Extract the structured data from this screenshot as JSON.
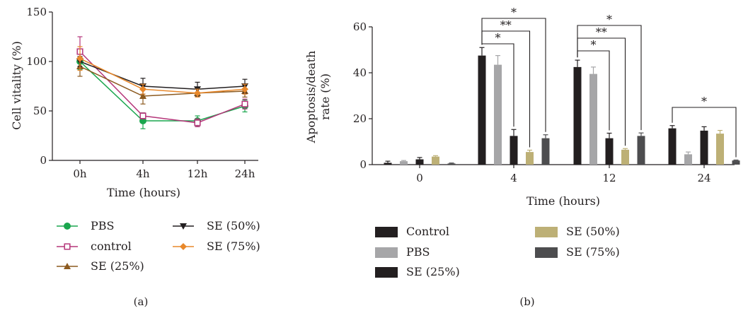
{
  "chart_data": [
    {
      "panel_label": "(a)",
      "type": "line",
      "xlabel": "Time (hours)",
      "ylabel": "Cell vitality (%)",
      "categories": [
        "0h",
        "4h",
        "12h",
        "24h"
      ],
      "yticks": [
        "0",
        "50",
        "100",
        "150"
      ],
      "ylim": [
        0,
        150
      ],
      "legend_position": "bottom",
      "series": [
        {
          "name": "PBS",
          "values": [
            100,
            40,
            40,
            55
          ],
          "errors": [
            8,
            8,
            5,
            6
          ],
          "color": "#1aa64e",
          "marker": "circle"
        },
        {
          "name": "control",
          "values": [
            110,
            45,
            38,
            57
          ],
          "errors": [
            15,
            3,
            4,
            5
          ],
          "color": "#b5367a",
          "marker": "square-open"
        },
        {
          "name": "SE (25%)",
          "values": [
            95,
            65,
            68,
            70
          ],
          "errors": [
            10,
            8,
            4,
            6
          ],
          "color": "#8c5a1f",
          "marker": "triangle-up"
        },
        {
          "name": "SE (50%)",
          "values": [
            100,
            75,
            72,
            75
          ],
          "errors": [
            5,
            8,
            7,
            7
          ],
          "color": "#231f20",
          "marker": "triangle-down"
        },
        {
          "name": "SE (75%)",
          "values": [
            103,
            72,
            68,
            72
          ],
          "errors": [
            12,
            5,
            4,
            5
          ],
          "color": "#e8882b",
          "marker": "diamond"
        }
      ]
    },
    {
      "panel_label": "(b)",
      "type": "bar",
      "xlabel": "Time (hours)",
      "ylabel_lines": [
        "Apoptosis/death",
        "rate (%)"
      ],
      "categories": [
        "0",
        "4",
        "12",
        "24"
      ],
      "yticks": [
        "0",
        "20",
        "40",
        "60"
      ],
      "ylim": [
        0,
        60
      ],
      "legend_position": "bottom",
      "series": [
        {
          "name": "Control",
          "color": "#231f20",
          "values": [
            0.8,
            47.5,
            42.5,
            15.8
          ],
          "errors": [
            0.7,
            3.5,
            3.0,
            1.2
          ]
        },
        {
          "name": "PBS",
          "color": "#a6a6a8",
          "values": [
            1.5,
            43.5,
            39.5,
            4.5
          ],
          "errors": [
            0.3,
            4.0,
            3.0,
            1.0
          ]
        },
        {
          "name": "SE (25%)",
          "color": "#231f20",
          "values": [
            2.3,
            12.5,
            11.5,
            14.8
          ],
          "errors": [
            0.8,
            2.8,
            2.2,
            1.7
          ]
        },
        {
          "name": "SE (50%)",
          "color": "#bdb076",
          "values": [
            3.5,
            5.5,
            6.5,
            13.5
          ],
          "errors": [
            0.4,
            0.8,
            0.5,
            1.4
          ]
        },
        {
          "name": "SE (75%)",
          "color": "#4d4d4f",
          "values": [
            0.5,
            11.5,
            12.5,
            1.8
          ],
          "errors": [
            0.2,
            1.5,
            1.3,
            0.2
          ]
        }
      ],
      "significance": [
        {
          "group": "4",
          "from": "Control",
          "to": "SE (25%)",
          "label": "*"
        },
        {
          "group": "4",
          "from": "Control",
          "to": "SE (50%)",
          "label": "**"
        },
        {
          "group": "4",
          "from": "Control",
          "to": "SE (75%)",
          "label": "*"
        },
        {
          "group": "12",
          "from": "Control",
          "to": "SE (25%)",
          "label": "*"
        },
        {
          "group": "12",
          "from": "Control",
          "to": "SE (50%)",
          "label": "**"
        },
        {
          "group": "12",
          "from": "Control",
          "to": "SE (75%)",
          "label": "*"
        },
        {
          "group": "24",
          "from": "Control",
          "to": "SE (75%)",
          "label": "*"
        }
      ]
    }
  ]
}
